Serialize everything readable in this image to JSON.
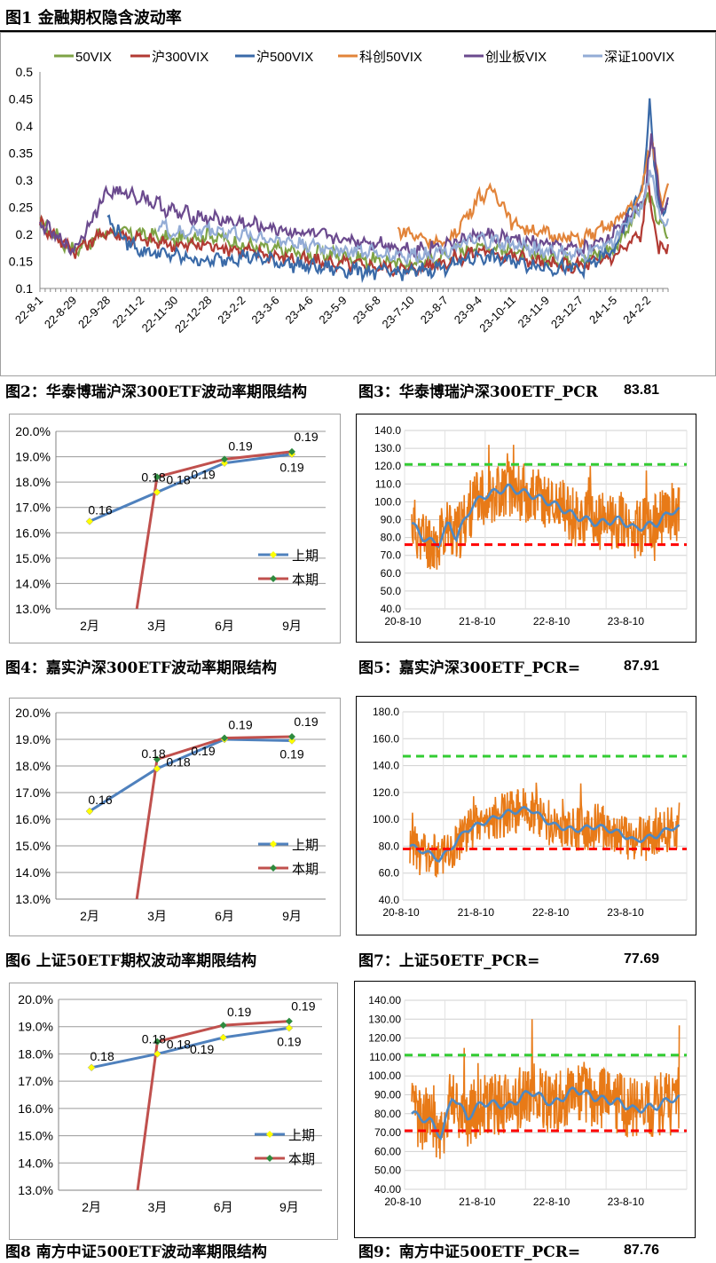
{
  "figure1": {
    "title": "图1    金融期权隐含波动率",
    "legend": [
      "50VIX",
      "沪300VIX",
      "沪500VIX",
      "科创50VIX",
      "创业板VIX",
      "深证100VIX"
    ],
    "colors": [
      "#7ea345",
      "#b23a33",
      "#3a6aa8",
      "#e2843a",
      "#6b4a8e",
      "#93acd6"
    ]
  },
  "captions": {
    "fig2": "图2：华泰博瑞沪深300ETF波动率期限结构",
    "fig3": "图3：华泰博瑞沪深300ETF_PCR",
    "fig3_value": "83.81",
    "fig4": "图4：嘉实沪深300ETF波动率期限结构",
    "fig5": "图5：嘉实沪深300ETF_PCR=",
    "fig5_value": "87.91",
    "fig6": "图6   上证50ETF期权波动率期限结构",
    "fig7": "图7：上证50ETF_PCR=",
    "fig7_value": "77.69",
    "fig8": "图8    南方中证500ETF波动率期限结构",
    "fig9": "图9：南方中证500ETF_PCR=",
    "fig9_value": "87.76"
  },
  "colors": {
    "prev": "#4f81bd",
    "curr": "#c0504d",
    "prev_marker": "#ffff00",
    "curr_marker": "#2e8b3e",
    "pcr_line": "#e87a17",
    "pcr_avg": "#4d89c4",
    "upper": "#33cc33",
    "lower": "#ff0000"
  },
  "chart_data": [
    {
      "type": "line",
      "id": "vix",
      "x_labels": [
        "22-8-1",
        "22-8-29",
        "22-9-28",
        "22-11-2",
        "22-11-30",
        "22-12-28",
        "23-2-2",
        "23-3-6",
        "23-4-6",
        "23-5-9",
        "23-6-8",
        "23-7-10",
        "23-8-7",
        "23-9-4",
        "23-10-11",
        "23-11-9",
        "23-12-7",
        "24-1-5",
        "24-2-2"
      ],
      "y_ticks": [
        "0.1",
        "0.15",
        "0.2",
        "0.25",
        "0.3",
        "0.35",
        "0.4",
        "0.45",
        "0.5"
      ],
      "ylim": [
        0.1,
        0.5
      ],
      "series": [
        {
          "name": "50VIX",
          "points": [
            [
              0,
              0.22
            ],
            [
              1,
              0.17
            ],
            [
              2,
              0.205
            ],
            [
              3,
              0.2
            ],
            [
              4,
              0.19
            ],
            [
              5,
              0.2
            ],
            [
              6,
              0.18
            ],
            [
              7,
              0.17
            ],
            [
              8,
              0.165
            ],
            [
              9,
              0.16
            ],
            [
              10,
              0.15
            ],
            [
              11,
              0.145
            ],
            [
              12,
              0.16
            ],
            [
              13,
              0.18
            ],
            [
              14,
              0.17
            ],
            [
              15,
              0.155
            ],
            [
              16,
              0.15
            ],
            [
              17,
              0.175
            ],
            [
              18,
              0.27
            ],
            [
              18.6,
              0.19
            ]
          ]
        },
        {
          "name": "沪300VIX",
          "points": [
            [
              0,
              0.22
            ],
            [
              1,
              0.17
            ],
            [
              2,
              0.205
            ],
            [
              3,
              0.19
            ],
            [
              4,
              0.18
            ],
            [
              5,
              0.18
            ],
            [
              6,
              0.17
            ],
            [
              7,
              0.16
            ],
            [
              8,
              0.15
            ],
            [
              9,
              0.145
            ],
            [
              10,
              0.14
            ],
            [
              11,
              0.135
            ],
            [
              12,
              0.15
            ],
            [
              13,
              0.17
            ],
            [
              14,
              0.16
            ],
            [
              15,
              0.145
            ],
            [
              16,
              0.14
            ],
            [
              17,
              0.16
            ],
            [
              17.8,
              0.2
            ],
            [
              18,
              0.3
            ],
            [
              18.3,
              0.17
            ],
            [
              18.6,
              0.18
            ]
          ]
        },
        {
          "name": "沪500VIX",
          "points": [
            [
              2,
              0.23
            ],
            [
              2.5,
              0.19
            ],
            [
              3,
              0.17
            ],
            [
              4,
              0.16
            ],
            [
              5,
              0.15
            ],
            [
              6,
              0.16
            ],
            [
              7,
              0.15
            ],
            [
              8,
              0.14
            ],
            [
              9,
              0.135
            ],
            [
              10,
              0.13
            ],
            [
              11,
              0.13
            ],
            [
              12,
              0.14
            ],
            [
              13,
              0.16
            ],
            [
              14,
              0.15
            ],
            [
              15,
              0.14
            ],
            [
              16,
              0.135
            ],
            [
              17,
              0.17
            ],
            [
              17.9,
              0.3
            ],
            [
              18.05,
              0.45
            ],
            [
              18.3,
              0.25
            ],
            [
              18.6,
              0.25
            ]
          ]
        },
        {
          "name": "科创50VIX",
          "points": [
            [
              10.6,
              0.21
            ],
            [
              11,
              0.2
            ],
            [
              12,
              0.18
            ],
            [
              12.6,
              0.23
            ],
            [
              13,
              0.27
            ],
            [
              13.5,
              0.28
            ],
            [
              14,
              0.22
            ],
            [
              15,
              0.2
            ],
            [
              16,
              0.19
            ],
            [
              17,
              0.22
            ],
            [
              17.8,
              0.27
            ],
            [
              18.1,
              0.38
            ],
            [
              18.4,
              0.26
            ],
            [
              18.6,
              0.3
            ]
          ]
        },
        {
          "name": "创业板VIX",
          "points": [
            [
              0,
              0.22
            ],
            [
              1,
              0.17
            ],
            [
              2,
              0.28
            ],
            [
              3,
              0.27
            ],
            [
              4,
              0.24
            ],
            [
              5,
              0.23
            ],
            [
              6,
              0.22
            ],
            [
              7,
              0.21
            ],
            [
              8,
              0.2
            ],
            [
              9,
              0.19
            ],
            [
              10,
              0.185
            ],
            [
              11,
              0.17
            ],
            [
              12,
              0.18
            ],
            [
              13,
              0.2
            ],
            [
              14,
              0.19
            ],
            [
              15,
              0.18
            ],
            [
              16,
              0.17
            ],
            [
              17,
              0.2
            ],
            [
              17.9,
              0.27
            ],
            [
              18.1,
              0.39
            ],
            [
              18.4,
              0.24
            ],
            [
              18.6,
              0.27
            ]
          ]
        },
        {
          "name": "深证100VIX",
          "points": [
            [
              3.5,
              0.22
            ],
            [
              4,
              0.2
            ],
            [
              5,
              0.21
            ],
            [
              6,
              0.2
            ],
            [
              7,
              0.19
            ],
            [
              8,
              0.18
            ],
            [
              9,
              0.17
            ],
            [
              10,
              0.165
            ],
            [
              11,
              0.16
            ],
            [
              12,
              0.17
            ],
            [
              13,
              0.19
            ],
            [
              14,
              0.18
            ],
            [
              15,
              0.17
            ],
            [
              16,
              0.16
            ],
            [
              17,
              0.19
            ],
            [
              17.9,
              0.26
            ],
            [
              18.1,
              0.32
            ],
            [
              18.4,
              0.22
            ],
            [
              18.6,
              0.23
            ]
          ]
        }
      ]
    },
    {
      "type": "line",
      "id": "fig2",
      "categories": [
        "2月",
        "3月",
        "6月",
        "9月"
      ],
      "y_ticks": [
        "13.0%",
        "14.0%",
        "15.0%",
        "16.0%",
        "17.0%",
        "18.0%",
        "19.0%",
        "20.0%"
      ],
      "ylim": [
        13.0,
        20.0
      ],
      "legend": [
        "上期",
        "本期"
      ],
      "series": [
        {
          "name": "上期",
          "values": [
            16.45,
            17.6,
            18.75,
            19.1
          ],
          "labels": [
            "0.16",
            "0.18",
            "0.19",
            "0.19"
          ]
        },
        {
          "name": "本期",
          "values": [
            null,
            18.2,
            18.9,
            19.2
          ],
          "labels": [
            "",
            "0.18",
            "0.19",
            "0.19"
          ]
        }
      ]
    },
    {
      "type": "line",
      "id": "fig4",
      "categories": [
        "2月",
        "3月",
        "6月",
        "9月"
      ],
      "y_ticks": [
        "13.0%",
        "14.0%",
        "15.0%",
        "16.0%",
        "17.0%",
        "18.0%",
        "19.0%",
        "20.0%"
      ],
      "ylim": [
        13.0,
        20.0
      ],
      "legend": [
        "上期",
        "本期"
      ],
      "series": [
        {
          "name": "上期",
          "values": [
            16.3,
            17.9,
            19.0,
            18.95
          ],
          "labels": [
            "0.16",
            "0.18",
            "0.19",
            "0.19"
          ]
        },
        {
          "name": "本期",
          "values": [
            null,
            18.25,
            19.05,
            19.1
          ],
          "labels": [
            "",
            "0.18",
            "0.19",
            "0.19"
          ]
        }
      ]
    },
    {
      "type": "line",
      "id": "fig6",
      "categories": [
        "2月",
        "3月",
        "6月",
        "9月"
      ],
      "y_ticks": [
        "13.0%",
        "14.0%",
        "15.0%",
        "16.0%",
        "17.0%",
        "18.0%",
        "19.0%",
        "20.0%"
      ],
      "ylim": [
        13.0,
        20.0
      ],
      "legend": [
        "上期",
        "本期"
      ],
      "series": [
        {
          "name": "上期",
          "values": [
            17.5,
            18.0,
            18.6,
            18.95
          ],
          "labels": [
            "0.18",
            "0.18",
            "0.19",
            "0.19"
          ]
        },
        {
          "name": "本期",
          "values": [
            null,
            18.45,
            19.05,
            19.2
          ],
          "labels": [
            "",
            "0.18",
            "0.19",
            "0.19"
          ]
        }
      ]
    },
    {
      "type": "line",
      "id": "fig3",
      "x_labels": [
        "20-8-10",
        "21-8-10",
        "22-8-10",
        "23-8-10"
      ],
      "y_ticks": [
        "40.0",
        "50.0",
        "60.0",
        "70.0",
        "80.0",
        "90.0",
        "100.0",
        "110.0",
        "120.0",
        "130.0",
        "140.0"
      ],
      "ylim": [
        40,
        140
      ],
      "upper": 121,
      "lower": 76,
      "avg": [
        [
          0,
          88
        ],
        [
          0.15,
          80
        ],
        [
          0.35,
          76
        ],
        [
          0.5,
          88
        ],
        [
          0.6,
          80
        ],
        [
          0.8,
          97
        ],
        [
          0.95,
          103
        ],
        [
          1.3,
          108
        ],
        [
          1.6,
          104
        ],
        [
          1.9,
          99
        ],
        [
          2.2,
          92
        ],
        [
          2.5,
          88
        ],
        [
          2.8,
          90
        ],
        [
          3.0,
          85
        ],
        [
          3.3,
          88
        ],
        [
          3.5,
          95
        ]
      ],
      "pcr_range": [
        52,
        132
      ]
    },
    {
      "type": "line",
      "id": "fig5",
      "x_labels": [
        "20-8-10",
        "21-8-10",
        "22-8-10",
        "23-8-10"
      ],
      "y_ticks": [
        "40.0",
        "60.0",
        "80.0",
        "100.0",
        "120.0",
        "140.0",
        "160.0",
        "180.0"
      ],
      "ylim": [
        40,
        180
      ],
      "upper": 147,
      "lower": 78,
      "avg": [
        [
          0,
          80
        ],
        [
          0.2,
          76
        ],
        [
          0.4,
          70
        ],
        [
          0.6,
          82
        ],
        [
          0.75,
          92
        ],
        [
          1.0,
          98
        ],
        [
          1.3,
          105
        ],
        [
          1.6,
          108
        ],
        [
          1.9,
          96
        ],
        [
          2.2,
          92
        ],
        [
          2.5,
          95
        ],
        [
          2.8,
          90
        ],
        [
          3.0,
          84
        ],
        [
          3.3,
          88
        ],
        [
          3.5,
          94
        ]
      ],
      "pcr_range": [
        40,
        168
      ]
    },
    {
      "type": "line",
      "id": "fig7",
      "x_labels": [
        "20-8-10",
        "21-8-10",
        "22-8-10",
        "23-8-10"
      ],
      "y_ticks": [
        "40.00",
        "50.00",
        "60.00",
        "70.00",
        "80.00",
        "90.00",
        "100.00",
        "110.00",
        "120.00",
        "130.00",
        "140.00"
      ],
      "ylim": [
        40,
        140
      ],
      "upper": 111,
      "lower": 71,
      "avg": [
        [
          0,
          80
        ],
        [
          0.25,
          76
        ],
        [
          0.4,
          68
        ],
        [
          0.55,
          90
        ],
        [
          0.75,
          78
        ],
        [
          0.95,
          86
        ],
        [
          1.3,
          84
        ],
        [
          1.6,
          92
        ],
        [
          1.9,
          85
        ],
        [
          2.2,
          93
        ],
        [
          2.5,
          88
        ],
        [
          2.8,
          86
        ],
        [
          3.0,
          82
        ],
        [
          3.3,
          84
        ],
        [
          3.5,
          88
        ]
      ],
      "pcr_range": [
        44,
        131
      ]
    }
  ]
}
